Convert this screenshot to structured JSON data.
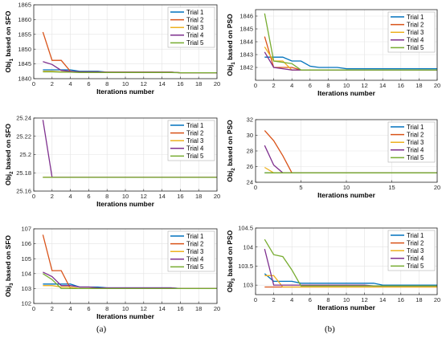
{
  "panel_labels": [
    "(a)",
    "(b)"
  ],
  "colors": [
    "#0072BD",
    "#D95319",
    "#EDB120",
    "#7E2F8E",
    "#77AC30"
  ],
  "chart_data": [
    {
      "type": "line",
      "panel": "a",
      "xlabel": "Iterations number",
      "ylabel": [
        "Obj",
        "1",
        " based on SFO"
      ],
      "xlim": [
        0,
        20
      ],
      "ylim": [
        1840,
        1865
      ],
      "xticks": [
        0,
        2,
        4,
        6,
        8,
        10,
        12,
        14,
        16,
        18,
        20
      ],
      "yticks": [
        1840,
        1845,
        1850,
        1855,
        1860,
        1865
      ],
      "grid": true,
      "legend": "top-right",
      "x": [
        1,
        2,
        3,
        4,
        5,
        6,
        7,
        8,
        9,
        10,
        11,
        12,
        13,
        14,
        15,
        16,
        17,
        18,
        19,
        20
      ],
      "series": [
        {
          "name": "Trial 1",
          "values": [
            1843,
            1843,
            1843,
            1843,
            1842.5,
            1842.5,
            1842.5,
            1842.2,
            1842.2,
            1842.2,
            1842.2,
            1842.2,
            1842.2,
            1842.2,
            1842.2,
            1842,
            1842,
            1842,
            1842,
            1842
          ]
        },
        {
          "name": "Trial 2",
          "values": [
            1855.8,
            1846.2,
            1846.2,
            1842.5,
            1842.3,
            1842.3,
            1842.3,
            1842.2,
            1842.2,
            1842.2,
            1842.2,
            1842.2,
            1842.2,
            1842.2,
            1842.2,
            1842,
            1842,
            1842,
            1842,
            1842
          ]
        },
        {
          "name": "Trial 3",
          "values": [
            1842.5,
            1842.5,
            1842.3,
            1842.3,
            1842.2,
            1842.2,
            1842.2,
            1842.2,
            1842.2,
            1842.2,
            1842.2,
            1842.2,
            1842.2,
            1842.2,
            1842.2,
            1842,
            1842,
            1842,
            1842,
            1842
          ]
        },
        {
          "name": "Trial 4",
          "values": [
            1845.8,
            1844.8,
            1842.8,
            1842.5,
            1842.3,
            1842.3,
            1842.3,
            1842.2,
            1842.2,
            1842.2,
            1842.2,
            1842.2,
            1842.2,
            1842.2,
            1842.2,
            1842,
            1842,
            1842,
            1842,
            1842
          ]
        },
        {
          "name": "Trial 5",
          "values": [
            1842.3,
            1842.3,
            1842.2,
            1842.2,
            1842.1,
            1842.1,
            1842.1,
            1842.1,
            1842.1,
            1842.1,
            1842.1,
            1842.1,
            1842.1,
            1842.1,
            1842.1,
            1842,
            1842,
            1842,
            1842,
            1842
          ]
        }
      ]
    },
    {
      "type": "line",
      "panel": "b",
      "xlabel": "Iterations number",
      "ylabel": [
        "Obj",
        "1",
        " based on PSO"
      ],
      "xlim": [
        0,
        20
      ],
      "ylim": [
        1841,
        1846.5
      ],
      "xticks": [
        0,
        2,
        4,
        6,
        8,
        10,
        12,
        14,
        16,
        18,
        20
      ],
      "yticks": [
        1842,
        1843,
        1844,
        1845,
        1846
      ],
      "grid": true,
      "legend": "top-right",
      "x": [
        1,
        2,
        3,
        4,
        5,
        6,
        7,
        8,
        9,
        10,
        11,
        12,
        13,
        14,
        15,
        16,
        17,
        18,
        19,
        20
      ],
      "series": [
        {
          "name": "Trial 1",
          "values": [
            1842.8,
            1842.8,
            1842.8,
            1842.5,
            1842.5,
            1842.1,
            1842,
            1842,
            1842,
            1841.9,
            1841.9,
            1841.9,
            1841.9,
            1841.9,
            1841.9,
            1841.9,
            1841.9,
            1841.9,
            1841.9,
            1841.9
          ]
        },
        {
          "name": "Trial 2",
          "values": [
            1844.4,
            1842,
            1842,
            1842,
            1841.8,
            1841.8,
            1841.8,
            1841.8,
            1841.8,
            1841.8,
            1841.8,
            1841.8,
            1841.8,
            1841.8,
            1841.8,
            1841.8,
            1841.8,
            1841.8,
            1841.8,
            1841.8
          ]
        },
        {
          "name": "Trial 3",
          "values": [
            1843.6,
            1842.5,
            1842.5,
            1841.8,
            1841.8,
            1841.8,
            1841.8,
            1841.8,
            1841.8,
            1841.8,
            1841.8,
            1841.8,
            1841.8,
            1841.8,
            1841.8,
            1841.8,
            1841.8,
            1841.8,
            1841.8,
            1841.8
          ]
        },
        {
          "name": "Trial 4",
          "values": [
            1843.2,
            1842,
            1841.9,
            1841.8,
            1841.8,
            1841.8,
            1841.8,
            1841.8,
            1841.8,
            1841.8,
            1841.8,
            1841.8,
            1841.8,
            1841.8,
            1841.8,
            1841.8,
            1841.8,
            1841.8,
            1841.8,
            1841.8
          ]
        },
        {
          "name": "Trial 5",
          "values": [
            1846.2,
            1842.5,
            1842.4,
            1842.3,
            1841.8,
            1841.8,
            1841.8,
            1841.8,
            1841.8,
            1841.8,
            1841.8,
            1841.8,
            1841.8,
            1841.8,
            1841.8,
            1841.8,
            1841.8,
            1841.8,
            1841.8,
            1841.8
          ]
        }
      ]
    },
    {
      "type": "line",
      "panel": "a",
      "xlabel": "Iterations number",
      "ylabel": [
        "Obj",
        "2",
        " based on SFO"
      ],
      "xlim": [
        0,
        20
      ],
      "ylim": [
        25.16,
        25.24
      ],
      "xticks": [
        0,
        2,
        4,
        6,
        8,
        10,
        12,
        14,
        16,
        18,
        20
      ],
      "yticks": [
        25.16,
        25.18,
        25.2,
        25.22,
        25.24
      ],
      "grid": true,
      "legend": "top-right",
      "x": [
        1,
        2,
        3,
        4,
        5,
        6,
        7,
        8,
        9,
        10,
        11,
        12,
        13,
        14,
        15,
        16,
        17,
        18,
        19,
        20
      ],
      "series": [
        {
          "name": "Trial 1",
          "values": [
            25.175,
            25.175,
            25.175,
            25.175,
            25.175,
            25.175,
            25.175,
            25.175,
            25.175,
            25.175,
            25.175,
            25.175,
            25.175,
            25.175,
            25.175,
            25.175,
            25.175,
            25.175,
            25.175,
            25.175
          ]
        },
        {
          "name": "Trial 2",
          "values": [
            25.175,
            25.175,
            25.175,
            25.175,
            25.175,
            25.175,
            25.175,
            25.175,
            25.175,
            25.175,
            25.175,
            25.175,
            25.175,
            25.175,
            25.175,
            25.175,
            25.175,
            25.175,
            25.175,
            25.175
          ]
        },
        {
          "name": "Trial 3",
          "values": [
            25.175,
            25.175,
            25.175,
            25.175,
            25.175,
            25.175,
            25.175,
            25.175,
            25.175,
            25.175,
            25.175,
            25.175,
            25.175,
            25.175,
            25.175,
            25.175,
            25.175,
            25.175,
            25.175,
            25.175
          ]
        },
        {
          "name": "Trial 4",
          "values": [
            25.238,
            25.175,
            25.175,
            25.175,
            25.175,
            25.175,
            25.175,
            25.175,
            25.175,
            25.175,
            25.175,
            25.175,
            25.175,
            25.175,
            25.175,
            25.175,
            25.175,
            25.175,
            25.175,
            25.175
          ]
        },
        {
          "name": "Trial 5",
          "values": [
            25.175,
            25.175,
            25.175,
            25.175,
            25.175,
            25.175,
            25.175,
            25.175,
            25.175,
            25.175,
            25.175,
            25.175,
            25.175,
            25.175,
            25.175,
            25.175,
            25.175,
            25.175,
            25.175,
            25.175
          ]
        }
      ]
    },
    {
      "type": "line",
      "panel": "b",
      "xlabel": "Iterations number",
      "ylabel": [
        "Obj",
        "2",
        " based on PSO"
      ],
      "xlim": [
        0,
        20
      ],
      "ylim": [
        24,
        32
      ],
      "xticks": [
        0,
        5,
        10,
        15,
        20
      ],
      "yticks": [
        24,
        26,
        28,
        30,
        32
      ],
      "grid": true,
      "legend": "top-right",
      "x": [
        1,
        2,
        3,
        4,
        5,
        6,
        7,
        8,
        9,
        10,
        11,
        12,
        13,
        14,
        15,
        16,
        17,
        18,
        19,
        20
      ],
      "series": [
        {
          "name": "Trial 1",
          "values": [
            25.2,
            25.2,
            25.2,
            25.2,
            25.2,
            25.2,
            25.2,
            25.2,
            25.2,
            25.2,
            25.2,
            25.2,
            25.2,
            25.2,
            25.2,
            25.2,
            25.2,
            25.2,
            25.2,
            25.2
          ]
        },
        {
          "name": "Trial 2",
          "values": [
            30.6,
            29.3,
            27.4,
            25.2,
            25.2,
            25.2,
            25.2,
            25.2,
            25.2,
            25.2,
            25.2,
            25.2,
            25.2,
            25.2,
            25.2,
            25.2,
            25.2,
            25.2,
            25.2,
            25.2
          ]
        },
        {
          "name": "Trial 3",
          "values": [
            25.9,
            25.2,
            25.2,
            25.2,
            25.2,
            25.2,
            25.2,
            25.2,
            25.2,
            25.2,
            25.2,
            25.2,
            25.2,
            25.2,
            25.2,
            25.2,
            25.2,
            25.2,
            25.2,
            25.2
          ]
        },
        {
          "name": "Trial 4",
          "values": [
            28.7,
            26.2,
            25.2,
            25.2,
            25.2,
            25.2,
            25.2,
            25.2,
            25.2,
            25.2,
            25.2,
            25.2,
            25.2,
            25.2,
            25.2,
            25.2,
            25.2,
            25.2,
            25.2,
            25.2
          ]
        },
        {
          "name": "Trial 5",
          "values": [
            25.2,
            25.2,
            25.2,
            25.2,
            25.2,
            25.2,
            25.2,
            25.2,
            25.2,
            25.2,
            25.2,
            25.2,
            25.2,
            25.2,
            25.2,
            25.2,
            25.2,
            25.2,
            25.2,
            25.2
          ]
        }
      ]
    },
    {
      "type": "line",
      "panel": "a",
      "xlabel": "Iterations number",
      "ylabel": [
        "Obj",
        "3",
        " based on SFO"
      ],
      "xlim": [
        0,
        20
      ],
      "ylim": [
        102,
        107
      ],
      "xticks": [
        0,
        2,
        4,
        6,
        8,
        10,
        12,
        14,
        16,
        18,
        20
      ],
      "yticks": [
        102,
        103,
        104,
        105,
        106,
        107
      ],
      "grid": true,
      "legend": "top-right",
      "x": [
        1,
        2,
        3,
        4,
        5,
        6,
        7,
        8,
        9,
        10,
        11,
        12,
        13,
        14,
        15,
        16,
        17,
        18,
        19,
        20
      ],
      "series": [
        {
          "name": "Trial 1",
          "values": [
            103.3,
            103.3,
            103.3,
            103.3,
            103.1,
            103.1,
            103.1,
            103.05,
            103.05,
            103.05,
            103.05,
            103.05,
            103.05,
            103.05,
            103.05,
            103,
            103,
            103,
            103,
            103
          ]
        },
        {
          "name": "Trial 2",
          "values": [
            106.6,
            104.2,
            104.2,
            103,
            103,
            103,
            103,
            103,
            103,
            103,
            103,
            103,
            103,
            103,
            103,
            103,
            103,
            103,
            103,
            103
          ]
        },
        {
          "name": "Trial 3",
          "values": [
            103.2,
            103.2,
            103.1,
            103.1,
            103,
            103,
            103,
            103,
            103,
            103,
            103,
            103,
            103,
            103,
            103,
            103,
            103,
            103,
            103,
            103
          ]
        },
        {
          "name": "Trial 4",
          "values": [
            104.1,
            103.8,
            103.2,
            103.2,
            103.1,
            103.1,
            103.05,
            103.05,
            103.05,
            103.05,
            103.05,
            103.05,
            103.05,
            103.05,
            103.05,
            103,
            103,
            103,
            103,
            103
          ]
        },
        {
          "name": "Trial 5",
          "values": [
            104,
            103.6,
            103,
            103,
            103,
            103,
            103,
            103,
            103,
            103,
            103,
            103,
            103,
            103,
            103,
            103,
            103,
            103,
            103,
            103
          ]
        }
      ]
    },
    {
      "type": "line",
      "panel": "b",
      "xlabel": "Iterations number",
      "ylabel": [
        "Obj",
        "3",
        " based on PSO"
      ],
      "xlim": [
        0,
        20
      ],
      "ylim": [
        102.75,
        104.5
      ],
      "xticks": [
        0,
        2,
        4,
        6,
        8,
        10,
        12,
        14,
        16,
        18,
        20
      ],
      "yticks": [
        103,
        103.5,
        104,
        104.5
      ],
      "grid": true,
      "legend": "top-right",
      "x": [
        1,
        2,
        3,
        4,
        5,
        6,
        7,
        8,
        9,
        10,
        11,
        12,
        13,
        14,
        15,
        16,
        17,
        18,
        19,
        20
      ],
      "series": [
        {
          "name": "Trial 1",
          "values": [
            103.3,
            103.1,
            103.1,
            103.1,
            103.05,
            103.05,
            103.05,
            103.05,
            103.05,
            103.05,
            103.05,
            103.05,
            103.05,
            103,
            103,
            103,
            103,
            103,
            103,
            103
          ]
        },
        {
          "name": "Trial 2",
          "values": [
            102.95,
            102.95,
            102.95,
            102.95,
            102.95,
            102.95,
            102.95,
            102.95,
            102.95,
            102.95,
            102.95,
            102.95,
            102.95,
            102.95,
            102.95,
            102.95,
            102.95,
            102.95,
            102.95,
            102.95
          ]
        },
        {
          "name": "Trial 3",
          "values": [
            103.25,
            103.25,
            102.95,
            102.95,
            102.95,
            102.95,
            102.95,
            102.95,
            102.95,
            102.95,
            102.95,
            102.95,
            102.95,
            102.95,
            102.95,
            102.95,
            102.95,
            102.95,
            102.95,
            102.95
          ]
        },
        {
          "name": "Trial 4",
          "values": [
            103.95,
            103,
            103,
            103,
            103,
            103,
            103,
            103,
            103,
            103,
            103,
            103,
            102.98,
            102.98,
            102.98,
            102.98,
            102.98,
            102.98,
            102.98,
            102.98
          ]
        },
        {
          "name": "Trial 5",
          "values": [
            104.2,
            103.8,
            103.75,
            103.4,
            102.98,
            102.98,
            102.98,
            102.98,
            102.98,
            102.98,
            102.98,
            102.98,
            102.98,
            102.98,
            102.98,
            102.98,
            102.98,
            102.98,
            102.98,
            102.98
          ]
        }
      ]
    }
  ]
}
